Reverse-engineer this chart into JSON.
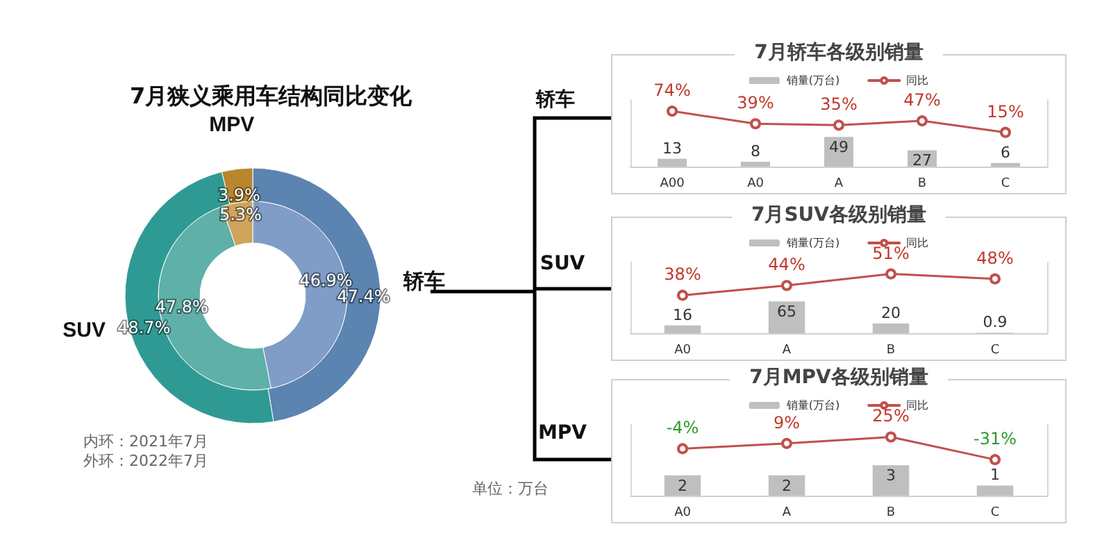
{
  "chart_data": [
    {
      "type": "donut",
      "title": "7月狭义乘用车结构同比变化",
      "categories": [
        "轿车",
        "SUV",
        "MPV"
      ],
      "series": [
        {
          "values": [
            46.9,
            47.8,
            5.3
          ],
          "colors": [
            "#7f9dc6",
            "#5eb0a9",
            "#cfa45c"
          ],
          "value_labels": [
            "46.9%",
            "47.8%",
            "5.3%"
          ]
        },
        {
          "values": [
            47.4,
            48.7,
            3.9
          ],
          "colors": [
            "#5b84b0",
            "#2f9a94",
            "#b8862c"
          ],
          "value_labels": [
            "47.4%",
            "48.7%",
            "3.9%"
          ]
        }
      ],
      "annotations": [
        "内环：2021年7月",
        "外环：2022年7月",
        "轿车",
        "SUV",
        "MPV",
        "单位：万台"
      ]
    },
    {
      "type": "bar",
      "title": "7月轿车各级别销量",
      "categories": [
        "A00",
        "A0",
        "A",
        "B",
        "C"
      ],
      "ylim": [
        0,
        110
      ],
      "y2lim": [
        -80,
        105
      ],
      "legend": "top",
      "tick_labels": "x",
      "data_labels": true,
      "marker": "circle",
      "line_style": "solid",
      "series": [
        {
          "name": "销量(万台)",
          "color": "#bfbfbf",
          "values": [
            13,
            8,
            49,
            27,
            6
          ]
        },
        {
          "name": "同比",
          "type": "line",
          "axis": "y2",
          "color": "#c0504d",
          "values": [
            74,
            39,
            35,
            47,
            15
          ],
          "value_labels": [
            "74%",
            "39%",
            "35%",
            "47%",
            "15%"
          ]
        }
      ]
    },
    {
      "type": "bar",
      "title": "7月SUV各级别销量",
      "categories": [
        "A0",
        "A",
        "B",
        "C"
      ],
      "ylim": [
        0,
        145
      ],
      "y2lim": [
        15,
        58
      ],
      "legend": "top",
      "tick_labels": "x",
      "data_labels": true,
      "marker": "circle",
      "line_style": "solid",
      "series": [
        {
          "name": "销量(万台)",
          "color": "#bfbfbf",
          "values": [
            16,
            65,
            20,
            0.9
          ]
        },
        {
          "name": "同比",
          "type": "line",
          "axis": "y2",
          "color": "#c0504d",
          "values": [
            38,
            44,
            51,
            48
          ],
          "value_labels": [
            "38%",
            "44%",
            "51%",
            "48%"
          ]
        }
      ]
    },
    {
      "type": "bar",
      "title": "7月MPV各级别销量",
      "categories": [
        "A0",
        "A",
        "B",
        "C"
      ],
      "ylim": [
        0,
        7
      ],
      "y2lim": [
        -120,
        55
      ],
      "legend": "top",
      "tick_labels": "x",
      "data_labels": true,
      "marker": "circle",
      "line_style": "solid",
      "series": [
        {
          "name": "销量(万台)",
          "color": "#bfbfbf",
          "values": [
            2,
            2,
            3,
            1
          ]
        },
        {
          "name": "同比",
          "type": "line",
          "axis": "y2",
          "color": "#c0504d",
          "values": [
            -4,
            9,
            25,
            -31
          ],
          "value_labels": [
            "-4%",
            "9%",
            "25%",
            "-31%"
          ]
        }
      ]
    }
  ]
}
